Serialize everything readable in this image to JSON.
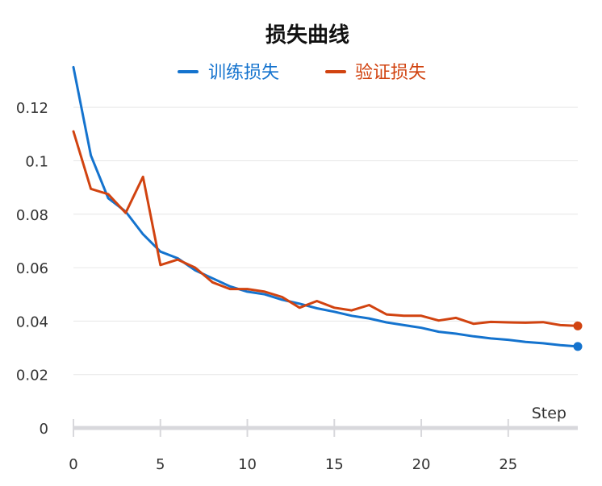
{
  "chart_data": {
    "type": "line",
    "title": "损失曲线",
    "xlabel": "Step",
    "ylabel": "",
    "xlim": [
      0,
      29
    ],
    "ylim": [
      0,
      0.13
    ],
    "x_ticks": [
      0,
      5,
      10,
      15,
      20,
      25
    ],
    "y_ticks": [
      0,
      0.02,
      0.04,
      0.06,
      0.08,
      0.1,
      0.12
    ],
    "y_tick_labels": [
      "0",
      "0.02",
      "0.04",
      "0.06",
      "0.08",
      "0.1",
      "0.12"
    ],
    "grid": "horizontal",
    "legend_position": "top-center",
    "x": [
      0,
      1,
      2,
      3,
      4,
      5,
      6,
      7,
      8,
      9,
      10,
      11,
      12,
      13,
      14,
      15,
      16,
      17,
      18,
      19,
      20,
      21,
      22,
      23,
      24,
      25,
      26,
      27,
      28,
      29
    ],
    "series": [
      {
        "name": "训练损失",
        "color": "#1473CE",
        "values": [
          0.135,
          0.102,
          0.086,
          0.081,
          0.0725,
          0.066,
          0.0635,
          0.059,
          0.056,
          0.053,
          0.051,
          0.05,
          0.048,
          0.0465,
          0.0448,
          0.0435,
          0.042,
          0.041,
          0.0395,
          0.0385,
          0.0375,
          0.036,
          0.0353,
          0.0343,
          0.0335,
          0.033,
          0.0322,
          0.0317,
          0.031,
          0.0305
        ]
      },
      {
        "name": "验证损失",
        "color": "#D14310",
        "values": [
          0.111,
          0.0895,
          0.0875,
          0.0805,
          0.094,
          0.061,
          0.063,
          0.06,
          0.0545,
          0.052,
          0.052,
          0.051,
          0.049,
          0.045,
          0.0475,
          0.045,
          0.044,
          0.046,
          0.0425,
          0.042,
          0.042,
          0.0402,
          0.0412,
          0.039,
          0.0397,
          0.0395,
          0.0394,
          0.0396,
          0.0385,
          0.0382
        ]
      }
    ]
  }
}
